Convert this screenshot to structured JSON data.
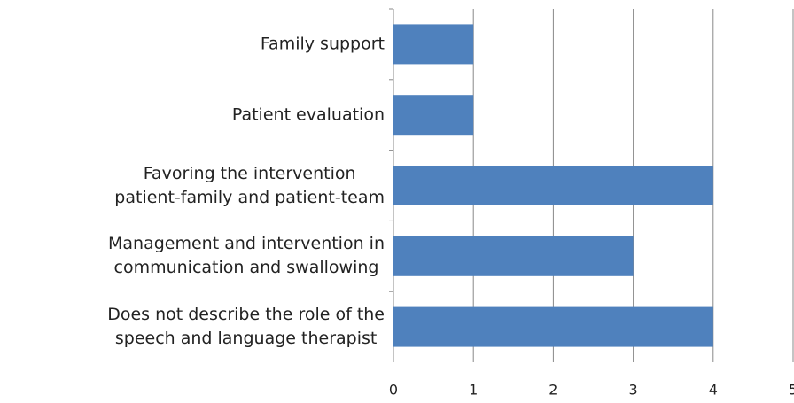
{
  "chart_data": {
    "type": "bar",
    "orientation": "horizontal",
    "categories": [
      "Family support",
      "Patient evaluation",
      "Favoring the intervention\npatient-family and patient-team",
      "Management and intervention in\ncommunication and swallowing",
      "Does not describe the role of the\nspeech and language therapist"
    ],
    "values": [
      1,
      1,
      4,
      3,
      4
    ],
    "color": "#4f81bd",
    "xlim": [
      0,
      5
    ],
    "xticks": [
      0,
      1,
      2,
      3,
      4,
      5
    ],
    "grid": true
  }
}
